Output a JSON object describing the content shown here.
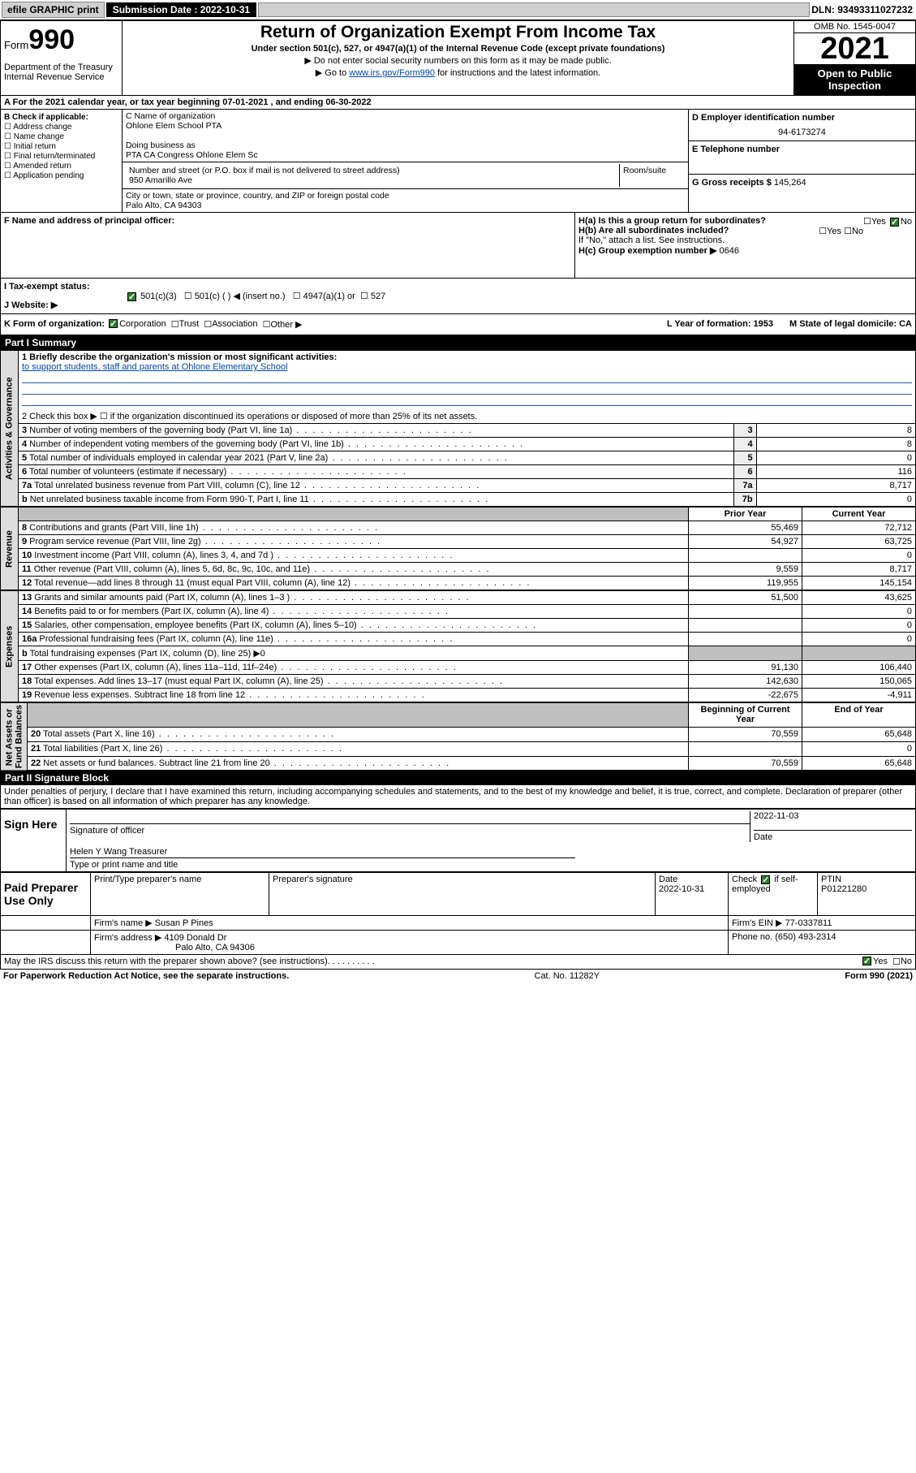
{
  "topbar": {
    "efile": "efile GRAPHIC print",
    "submission_label": "Submission Date : 2022-10-31",
    "dln": "DLN: 93493311027232"
  },
  "header": {
    "form_prefix": "Form",
    "form_num": "990",
    "title": "Return of Organization Exempt From Income Tax",
    "subtitle": "Under section 501(c), 527, or 4947(a)(1) of the Internal Revenue Code (except private foundations)",
    "note1": "▶ Do not enter social security numbers on this form as it may be made public.",
    "note2_prefix": "▶ Go to ",
    "note2_link": "www.irs.gov/Form990",
    "note2_suffix": " for instructions and the latest information.",
    "dept": "Department of the Treasury\nInternal Revenue Service",
    "omb": "OMB No. 1545-0047",
    "year": "2021",
    "open": "Open to Public Inspection"
  },
  "periodA": "For the 2021 calendar year, or tax year beginning 07-01-2021   , and ending 06-30-2022",
  "colB": {
    "label": "B Check if applicable:",
    "items": [
      "Address change",
      "Name change",
      "Initial return",
      "Final return/terminated",
      "Amended return",
      "Application pending"
    ]
  },
  "colC": {
    "name_lbl": "C Name of organization",
    "name": "Ohlone Elem School PTA",
    "dba_lbl": "Doing business as",
    "dba": "PTA CA Congress Ohlone Elem Sc",
    "addr_lbl": "Number and street (or P.O. box if mail is not delivered to street address)",
    "room_lbl": "Room/suite",
    "addr": "950 Amarillo Ave",
    "city_lbl": "City or town, state or province, country, and ZIP or foreign postal code",
    "city": "Palo Alto, CA  94303"
  },
  "colD": {
    "ein_lbl": "D Employer identification number",
    "ein": "94-6173274",
    "tel_lbl": "E Telephone number",
    "gross_lbl": "G Gross receipts $",
    "gross": "145,264"
  },
  "rowF": {
    "f_lbl": "F  Name and address of principal officer:",
    "ha": "H(a)  Is this a group return for subordinates?",
    "hb": "H(b)  Are all subordinates included?",
    "hb_note": "If \"No,\" attach a list. See instructions.",
    "hc": "H(c)  Group exemption number ▶",
    "hc_val": "0646",
    "yes": "Yes",
    "no": "No"
  },
  "taxI": {
    "lbl": "I   Tax-exempt status:",
    "c3": "501(c)(3)",
    "c": "501(c) (   ) ◀ (insert no.)",
    "a1": "4947(a)(1) or",
    "s527": "527",
    "j_lbl": "J   Website: ▶"
  },
  "rowK": {
    "k_lbl": "K Form of organization:",
    "corp": "Corporation",
    "trust": "Trust",
    "assoc": "Association",
    "other": "Other ▶",
    "l": "L Year of formation: 1953",
    "m": "M State of legal domicile: CA"
  },
  "part1": {
    "header": "Part I      Summary",
    "q1_lbl": "1   Briefly describe the organization's mission or most significant activities:",
    "q1_val": "to support students, staff and parents at Ohlone Elementary School",
    "q2": "2   Check this box ▶ ☐  if the organization discontinued its operations or disposed of more than 25% of its net assets.",
    "rows_gov": [
      {
        "n": "3",
        "lbl": "Number of voting members of the governing body (Part VI, line 1a)",
        "box": "3",
        "val": "8"
      },
      {
        "n": "4",
        "lbl": "Number of independent voting members of the governing body (Part VI, line 1b)",
        "box": "4",
        "val": "8"
      },
      {
        "n": "5",
        "lbl": "Total number of individuals employed in calendar year 2021 (Part V, line 2a)",
        "box": "5",
        "val": "0"
      },
      {
        "n": "6",
        "lbl": "Total number of volunteers (estimate if necessary)",
        "box": "6",
        "val": "116"
      },
      {
        "n": "7a",
        "lbl": "Total unrelated business revenue from Part VIII, column (C), line 12",
        "box": "7a",
        "val": "8,717"
      },
      {
        "n": "b",
        "lbl": "Net unrelated business taxable income from Form 990-T, Part I, line 11",
        "box": "7b",
        "val": "0"
      }
    ],
    "col_prior": "Prior Year",
    "col_current": "Current Year",
    "rows_rev": [
      {
        "n": "8",
        "lbl": "Contributions and grants (Part VIII, line 1h)",
        "p": "55,469",
        "c": "72,712"
      },
      {
        "n": "9",
        "lbl": "Program service revenue (Part VIII, line 2g)",
        "p": "54,927",
        "c": "63,725"
      },
      {
        "n": "10",
        "lbl": "Investment income (Part VIII, column (A), lines 3, 4, and 7d )",
        "p": "",
        "c": "0"
      },
      {
        "n": "11",
        "lbl": "Other revenue (Part VIII, column (A), lines 5, 6d, 8c, 9c, 10c, and 11e)",
        "p": "9,559",
        "c": "8,717"
      },
      {
        "n": "12",
        "lbl": "Total revenue—add lines 8 through 11 (must equal Part VIII, column (A), line 12)",
        "p": "119,955",
        "c": "145,154"
      }
    ],
    "rows_exp": [
      {
        "n": "13",
        "lbl": "Grants and similar amounts paid (Part IX, column (A), lines 1–3 )",
        "p": "51,500",
        "c": "43,625"
      },
      {
        "n": "14",
        "lbl": "Benefits paid to or for members (Part IX, column (A), line 4)",
        "p": "",
        "c": "0"
      },
      {
        "n": "15",
        "lbl": "Salaries, other compensation, employee benefits (Part IX, column (A), lines 5–10)",
        "p": "",
        "c": "0"
      },
      {
        "n": "16a",
        "lbl": "Professional fundraising fees (Part IX, column (A), line 11e)",
        "p": "",
        "c": "0"
      },
      {
        "n": "b",
        "lbl": "Total fundraising expenses (Part IX, column (D), line 25) ▶0",
        "p": "shade",
        "c": "shade"
      },
      {
        "n": "17",
        "lbl": "Other expenses (Part IX, column (A), lines 11a–11d, 11f–24e)",
        "p": "91,130",
        "c": "106,440"
      },
      {
        "n": "18",
        "lbl": "Total expenses. Add lines 13–17 (must equal Part IX, column (A), line 25)",
        "p": "142,630",
        "c": "150,065"
      },
      {
        "n": "19",
        "lbl": "Revenue less expenses. Subtract line 18 from line 12",
        "p": "-22,675",
        "c": "-4,911"
      }
    ],
    "col_beg": "Beginning of Current Year",
    "col_end": "End of Year",
    "rows_net": [
      {
        "n": "20",
        "lbl": "Total assets (Part X, line 16)",
        "p": "70,559",
        "c": "65,648"
      },
      {
        "n": "21",
        "lbl": "Total liabilities (Part X, line 26)",
        "p": "",
        "c": "0"
      },
      {
        "n": "22",
        "lbl": "Net assets or fund balances. Subtract line 21 from line 20",
        "p": "70,559",
        "c": "65,648"
      }
    ],
    "vlab_gov": "Activities & Governance",
    "vlab_rev": "Revenue",
    "vlab_exp": "Expenses",
    "vlab_net": "Net Assets or\nFund Balances"
  },
  "part2": {
    "header": "Part II     Signature Block",
    "decl": "Under penalties of perjury, I declare that I have examined this return, including accompanying schedules and statements, and to the best of my knowledge and belief, it is true, correct, and complete. Declaration of preparer (other than officer) is based on all information of which preparer has any knowledge.",
    "sign_here": "Sign Here",
    "sig_officer": "Signature of officer",
    "sig_date": "2022-11-03",
    "date_lbl": "Date",
    "officer_name": "Helen Y Wang Treasurer",
    "type_name": "Type or print name and title",
    "paid_prep": "Paid Preparer Use Only",
    "prep_name_lbl": "Print/Type preparer's name",
    "prep_sig_lbl": "Preparer's signature",
    "prep_date_lbl": "Date",
    "prep_date": "2022-10-31",
    "check_if": "Check",
    "self_emp": "if self-employed",
    "ptin_lbl": "PTIN",
    "ptin": "P01221280",
    "firm_name_lbl": "Firm's name    ▶",
    "firm_name": "Susan P Pines",
    "firm_ein_lbl": "Firm's EIN ▶",
    "firm_ein": "77-0337811",
    "firm_addr_lbl": "Firm's address ▶",
    "firm_addr": "4109 Donald Dr",
    "firm_city": "Palo Alto, CA  94306",
    "phone_lbl": "Phone no.",
    "phone": "(650) 493-2314",
    "may_irs": "May the IRS discuss this return with the preparer shown above? (see instructions)",
    "yes": "Yes",
    "no": "No"
  },
  "footer": {
    "pra": "For Paperwork Reduction Act Notice, see the separate instructions.",
    "cat": "Cat. No. 11282Y",
    "form": "Form 990 (2021)"
  }
}
